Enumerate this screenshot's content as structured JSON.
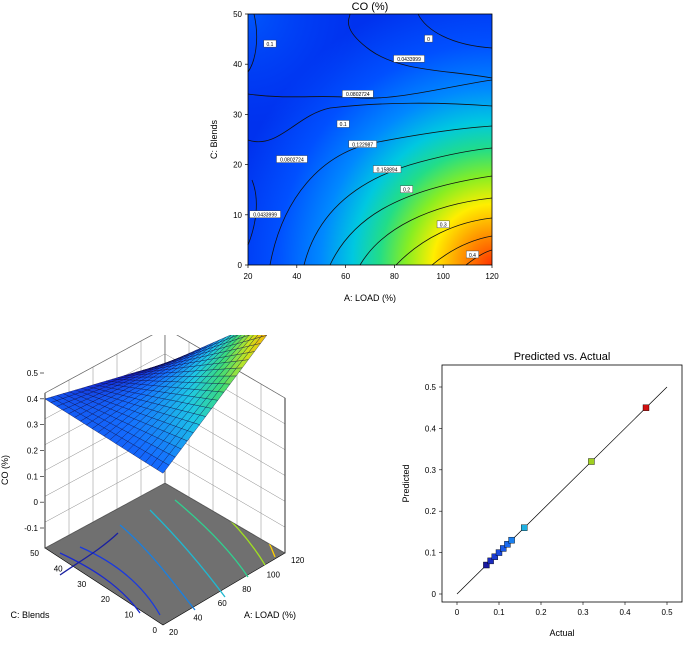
{
  "chart_data": [
    {
      "type": "contour",
      "title": "CO (%)",
      "xlabel": "A: LOAD  (%)",
      "ylabel": "C: Blends",
      "x_ticks": [
        20,
        40,
        60,
        80,
        100,
        120
      ],
      "y_ticks": [
        0,
        10,
        20,
        30,
        40,
        50
      ],
      "xlim": [
        20,
        120
      ],
      "ylim": [
        0,
        50
      ],
      "contour_labels": [
        {
          "text": "0.1",
          "x": 29,
          "y": 44
        },
        {
          "text": "0",
          "x": 94,
          "y": 45
        },
        {
          "text": "0.0433999",
          "x": 86,
          "y": 41
        },
        {
          "text": "0.0802724",
          "x": 65,
          "y": 34
        },
        {
          "text": "0.1",
          "x": 59,
          "y": 28
        },
        {
          "text": "0.122987",
          "x": 67,
          "y": 24
        },
        {
          "text": "0.0802724",
          "x": 38,
          "y": 21
        },
        {
          "text": "0.158894",
          "x": 77,
          "y": 19
        },
        {
          "text": "0.2",
          "x": 85,
          "y": 15
        },
        {
          "text": "0.0433999",
          "x": 27,
          "y": 10
        },
        {
          "text": "0.3",
          "x": 100,
          "y": 8
        },
        {
          "text": "0.4",
          "x": 112,
          "y": 2
        }
      ]
    },
    {
      "type": "surface",
      "zlabel": "CO (%)",
      "xlabel": "A: LOAD  (%)",
      "ylabel": "C: Blends",
      "z_ticks": [
        "0.5",
        "0.4",
        "0.3",
        "0.2",
        "0.1",
        "0",
        "-0.1"
      ],
      "x_ticks": [
        "20",
        "40",
        "60",
        "80",
        "100",
        "120"
      ],
      "y_ticks": [
        "0",
        "10",
        "20",
        "30",
        "40",
        "50"
      ],
      "zlim": [
        -0.1,
        0.5
      ]
    },
    {
      "type": "scatter",
      "title": "Predicted vs. Actual",
      "xlabel": "Actual",
      "ylabel": "Predicted",
      "xlim": [
        0,
        0.5
      ],
      "ylim": [
        0,
        0.5
      ],
      "x_ticks": [
        "0",
        "0.1",
        "0.2",
        "0.3",
        "0.4",
        "0.5"
      ],
      "y_ticks": [
        "0",
        "0.1",
        "0.2",
        "0.3",
        "0.4",
        "0.5"
      ],
      "points": [
        {
          "x": 0.07,
          "y": 0.07,
          "color": "#1a1aa0"
        },
        {
          "x": 0.08,
          "y": 0.08,
          "color": "#1a2ac0"
        },
        {
          "x": 0.09,
          "y": 0.09,
          "color": "#1a3ad0"
        },
        {
          "x": 0.1,
          "y": 0.1,
          "color": "#1a4ae0"
        },
        {
          "x": 0.11,
          "y": 0.11,
          "color": "#1a5ae8"
        },
        {
          "x": 0.12,
          "y": 0.12,
          "color": "#1a6af0"
        },
        {
          "x": 0.13,
          "y": 0.13,
          "color": "#1a80f0"
        },
        {
          "x": 0.16,
          "y": 0.16,
          "color": "#20b0e0"
        },
        {
          "x": 0.32,
          "y": 0.32,
          "color": "#a0d020"
        },
        {
          "x": 0.45,
          "y": 0.45,
          "color": "#d01010"
        }
      ],
      "reference_line": [
        [
          0,
          0
        ],
        [
          0.5,
          0.5
        ]
      ]
    }
  ]
}
